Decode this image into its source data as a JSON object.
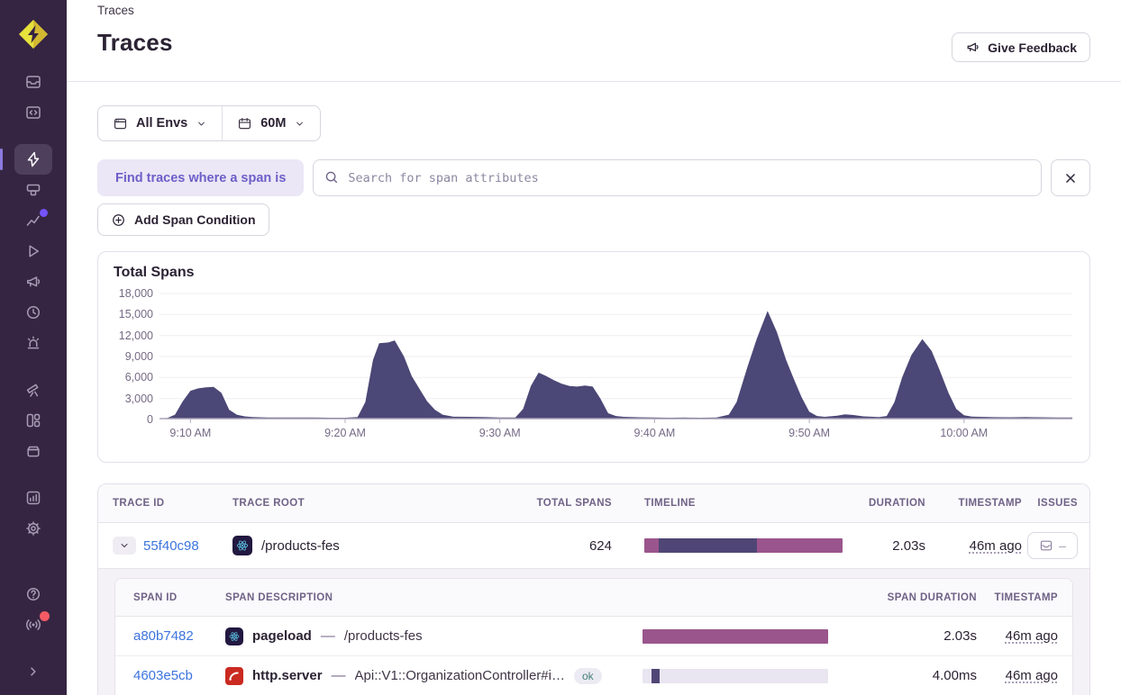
{
  "colors": {
    "sidebar_bg": "#362542",
    "accent": "#6d5fc8",
    "link": "#3c74dd",
    "chart_fill": "#4b4776",
    "timeline_mauve": "#9a558c",
    "timeline_indigo": "#4f4676",
    "bar_track": "#e9e5f1",
    "ok_badge_text": "#44807c",
    "notif_red": "#f55b64",
    "notif_purple": "#7553ff"
  },
  "sidebar": {
    "icons": [
      "sentry-logo",
      "issues",
      "projects",
      "explore-traces",
      "queries",
      "insights",
      "replays",
      "feedback",
      "releases",
      "alerts",
      "discover",
      "dashboards",
      "archive",
      "stats",
      "settings",
      "help",
      "whats-new",
      "collapse"
    ],
    "active": "explore-traces"
  },
  "header": {
    "breadcrumb": "Traces",
    "title": "Traces",
    "feedback_button": "Give Feedback"
  },
  "filters": {
    "environment": "All Envs",
    "time_range": "60M"
  },
  "span_filter": {
    "label": "Find traces where a span is",
    "search_placeholder": "Search for span attributes",
    "add_button": "Add Span Condition"
  },
  "chart_data": {
    "type": "area",
    "title": "Total Spans",
    "xlabel": "",
    "ylabel": "",
    "grid": true,
    "legend": false,
    "xlim": [
      8,
      67
    ],
    "ylim": [
      0,
      18000
    ],
    "y_ticks": [
      {
        "label": "0",
        "value": 0
      },
      {
        "label": "3,000",
        "value": 3000
      },
      {
        "label": "6,000",
        "value": 6000
      },
      {
        "label": "9,000",
        "value": 9000
      },
      {
        "label": "12,000",
        "value": 12000
      },
      {
        "label": "15,000",
        "value": 15000
      },
      {
        "label": "18,000",
        "value": 18000
      }
    ],
    "x_ticks": [
      {
        "label": "9:10 AM",
        "min": 10
      },
      {
        "label": "9:20 AM",
        "min": 20
      },
      {
        "label": "9:30 AM",
        "min": 30
      },
      {
        "label": "9:40 AM",
        "min": 40
      },
      {
        "label": "9:50 AM",
        "min": 50
      },
      {
        "label": "10:00 AM",
        "min": 60
      }
    ],
    "series": [
      {
        "name": "Total Spans",
        "points": [
          [
            8,
            150
          ],
          [
            8.5,
            200
          ],
          [
            9,
            700
          ],
          [
            9.5,
            2600
          ],
          [
            10,
            4100
          ],
          [
            10.5,
            4450
          ],
          [
            11,
            4600
          ],
          [
            11.5,
            4650
          ],
          [
            12,
            3800
          ],
          [
            12.5,
            1400
          ],
          [
            13,
            700
          ],
          [
            13.5,
            450
          ],
          [
            14,
            350
          ],
          [
            15,
            300
          ],
          [
            16,
            280
          ],
          [
            17,
            300
          ],
          [
            18,
            280
          ],
          [
            19,
            260
          ],
          [
            20,
            260
          ],
          [
            20.8,
            350
          ],
          [
            21.3,
            2500
          ],
          [
            21.8,
            8500
          ],
          [
            22.2,
            10900
          ],
          [
            22.8,
            11000
          ],
          [
            23.2,
            11300
          ],
          [
            23.8,
            9000
          ],
          [
            24.3,
            6200
          ],
          [
            24.8,
            4400
          ],
          [
            25.3,
            2600
          ],
          [
            25.8,
            1400
          ],
          [
            26.3,
            700
          ],
          [
            27,
            400
          ],
          [
            28,
            380
          ],
          [
            29,
            350
          ],
          [
            30,
            280
          ],
          [
            31,
            300
          ],
          [
            31.5,
            1500
          ],
          [
            32,
            4800
          ],
          [
            32.5,
            6700
          ],
          [
            33,
            6200
          ],
          [
            33.5,
            5600
          ],
          [
            34,
            5100
          ],
          [
            34.5,
            4800
          ],
          [
            35,
            4700
          ],
          [
            35.5,
            4850
          ],
          [
            36,
            4700
          ],
          [
            36.5,
            3000
          ],
          [
            37,
            900
          ],
          [
            37.5,
            500
          ],
          [
            38,
            380
          ],
          [
            39,
            320
          ],
          [
            40,
            280
          ],
          [
            41,
            260
          ],
          [
            42,
            280
          ],
          [
            43,
            260
          ],
          [
            44,
            300
          ],
          [
            44.8,
            700
          ],
          [
            45.3,
            2500
          ],
          [
            46,
            7500
          ],
          [
            46.6,
            11500
          ],
          [
            47.3,
            15500
          ],
          [
            47.9,
            12500
          ],
          [
            48.5,
            8500
          ],
          [
            49,
            5800
          ],
          [
            49.5,
            3200
          ],
          [
            50,
            1100
          ],
          [
            50.5,
            500
          ],
          [
            51,
            380
          ],
          [
            51.8,
            550
          ],
          [
            52.3,
            750
          ],
          [
            52.8,
            650
          ],
          [
            53.5,
            450
          ],
          [
            54.5,
            350
          ],
          [
            55,
            500
          ],
          [
            55.5,
            2500
          ],
          [
            56,
            6000
          ],
          [
            56.6,
            9200
          ],
          [
            57.3,
            11500
          ],
          [
            57.9,
            9800
          ],
          [
            58.4,
            7200
          ],
          [
            59,
            3800
          ],
          [
            59.5,
            1500
          ],
          [
            60,
            600
          ],
          [
            60.5,
            420
          ],
          [
            61,
            380
          ],
          [
            62,
            340
          ],
          [
            63,
            320
          ],
          [
            64,
            350
          ],
          [
            65,
            320
          ],
          [
            66,
            300
          ],
          [
            67,
            300
          ]
        ]
      }
    ]
  },
  "traces_table": {
    "columns": [
      "TRACE ID",
      "TRACE ROOT",
      "TOTAL SPANS",
      "TIMELINE",
      "DURATION",
      "TIMESTAMP",
      "ISSUES"
    ],
    "rows": [
      {
        "trace_id": "55f40c98",
        "platform": "react",
        "trace_root": "/products-fes",
        "total_spans": "624",
        "duration": "2.03s",
        "timestamp": "46m ago",
        "issues_value": "–",
        "timeline": {
          "track": false,
          "segments": [
            {
              "color": "#9a558c",
              "offset_pct": 0,
              "width_pct": 7.3
            },
            {
              "color": "#4f4676",
              "offset_pct": 7.3,
              "width_pct": 49.5
            },
            {
              "color": "#9a558c",
              "offset_pct": 56.8,
              "width_pct": 43.2
            }
          ]
        }
      }
    ]
  },
  "spans_table": {
    "columns": [
      "SPAN ID",
      "SPAN DESCRIPTION",
      "SPAN DURATION",
      "TIMESTAMP"
    ],
    "rows": [
      {
        "span_id": "a80b7482",
        "platform": "react",
        "op": "pageload",
        "separator": "—",
        "description": "/products-fes",
        "status": "",
        "duration": "2.03s",
        "timestamp": "46m ago",
        "bar": {
          "track": false,
          "segments": [
            {
              "color": "#9a558c",
              "offset_pct": 0,
              "width_pct": 100
            }
          ]
        }
      },
      {
        "span_id": "4603e5cb",
        "platform": "ruby",
        "op": "http.server",
        "separator": "—",
        "description": "Api::V1::OrganizationController#i…",
        "status": "ok",
        "duration": "4.00ms",
        "timestamp": "46m ago",
        "bar": {
          "track": true,
          "segments": [
            {
              "color": "#4f4676",
              "offset_pct": 5,
              "width_pct": 4
            }
          ]
        }
      }
    ]
  }
}
